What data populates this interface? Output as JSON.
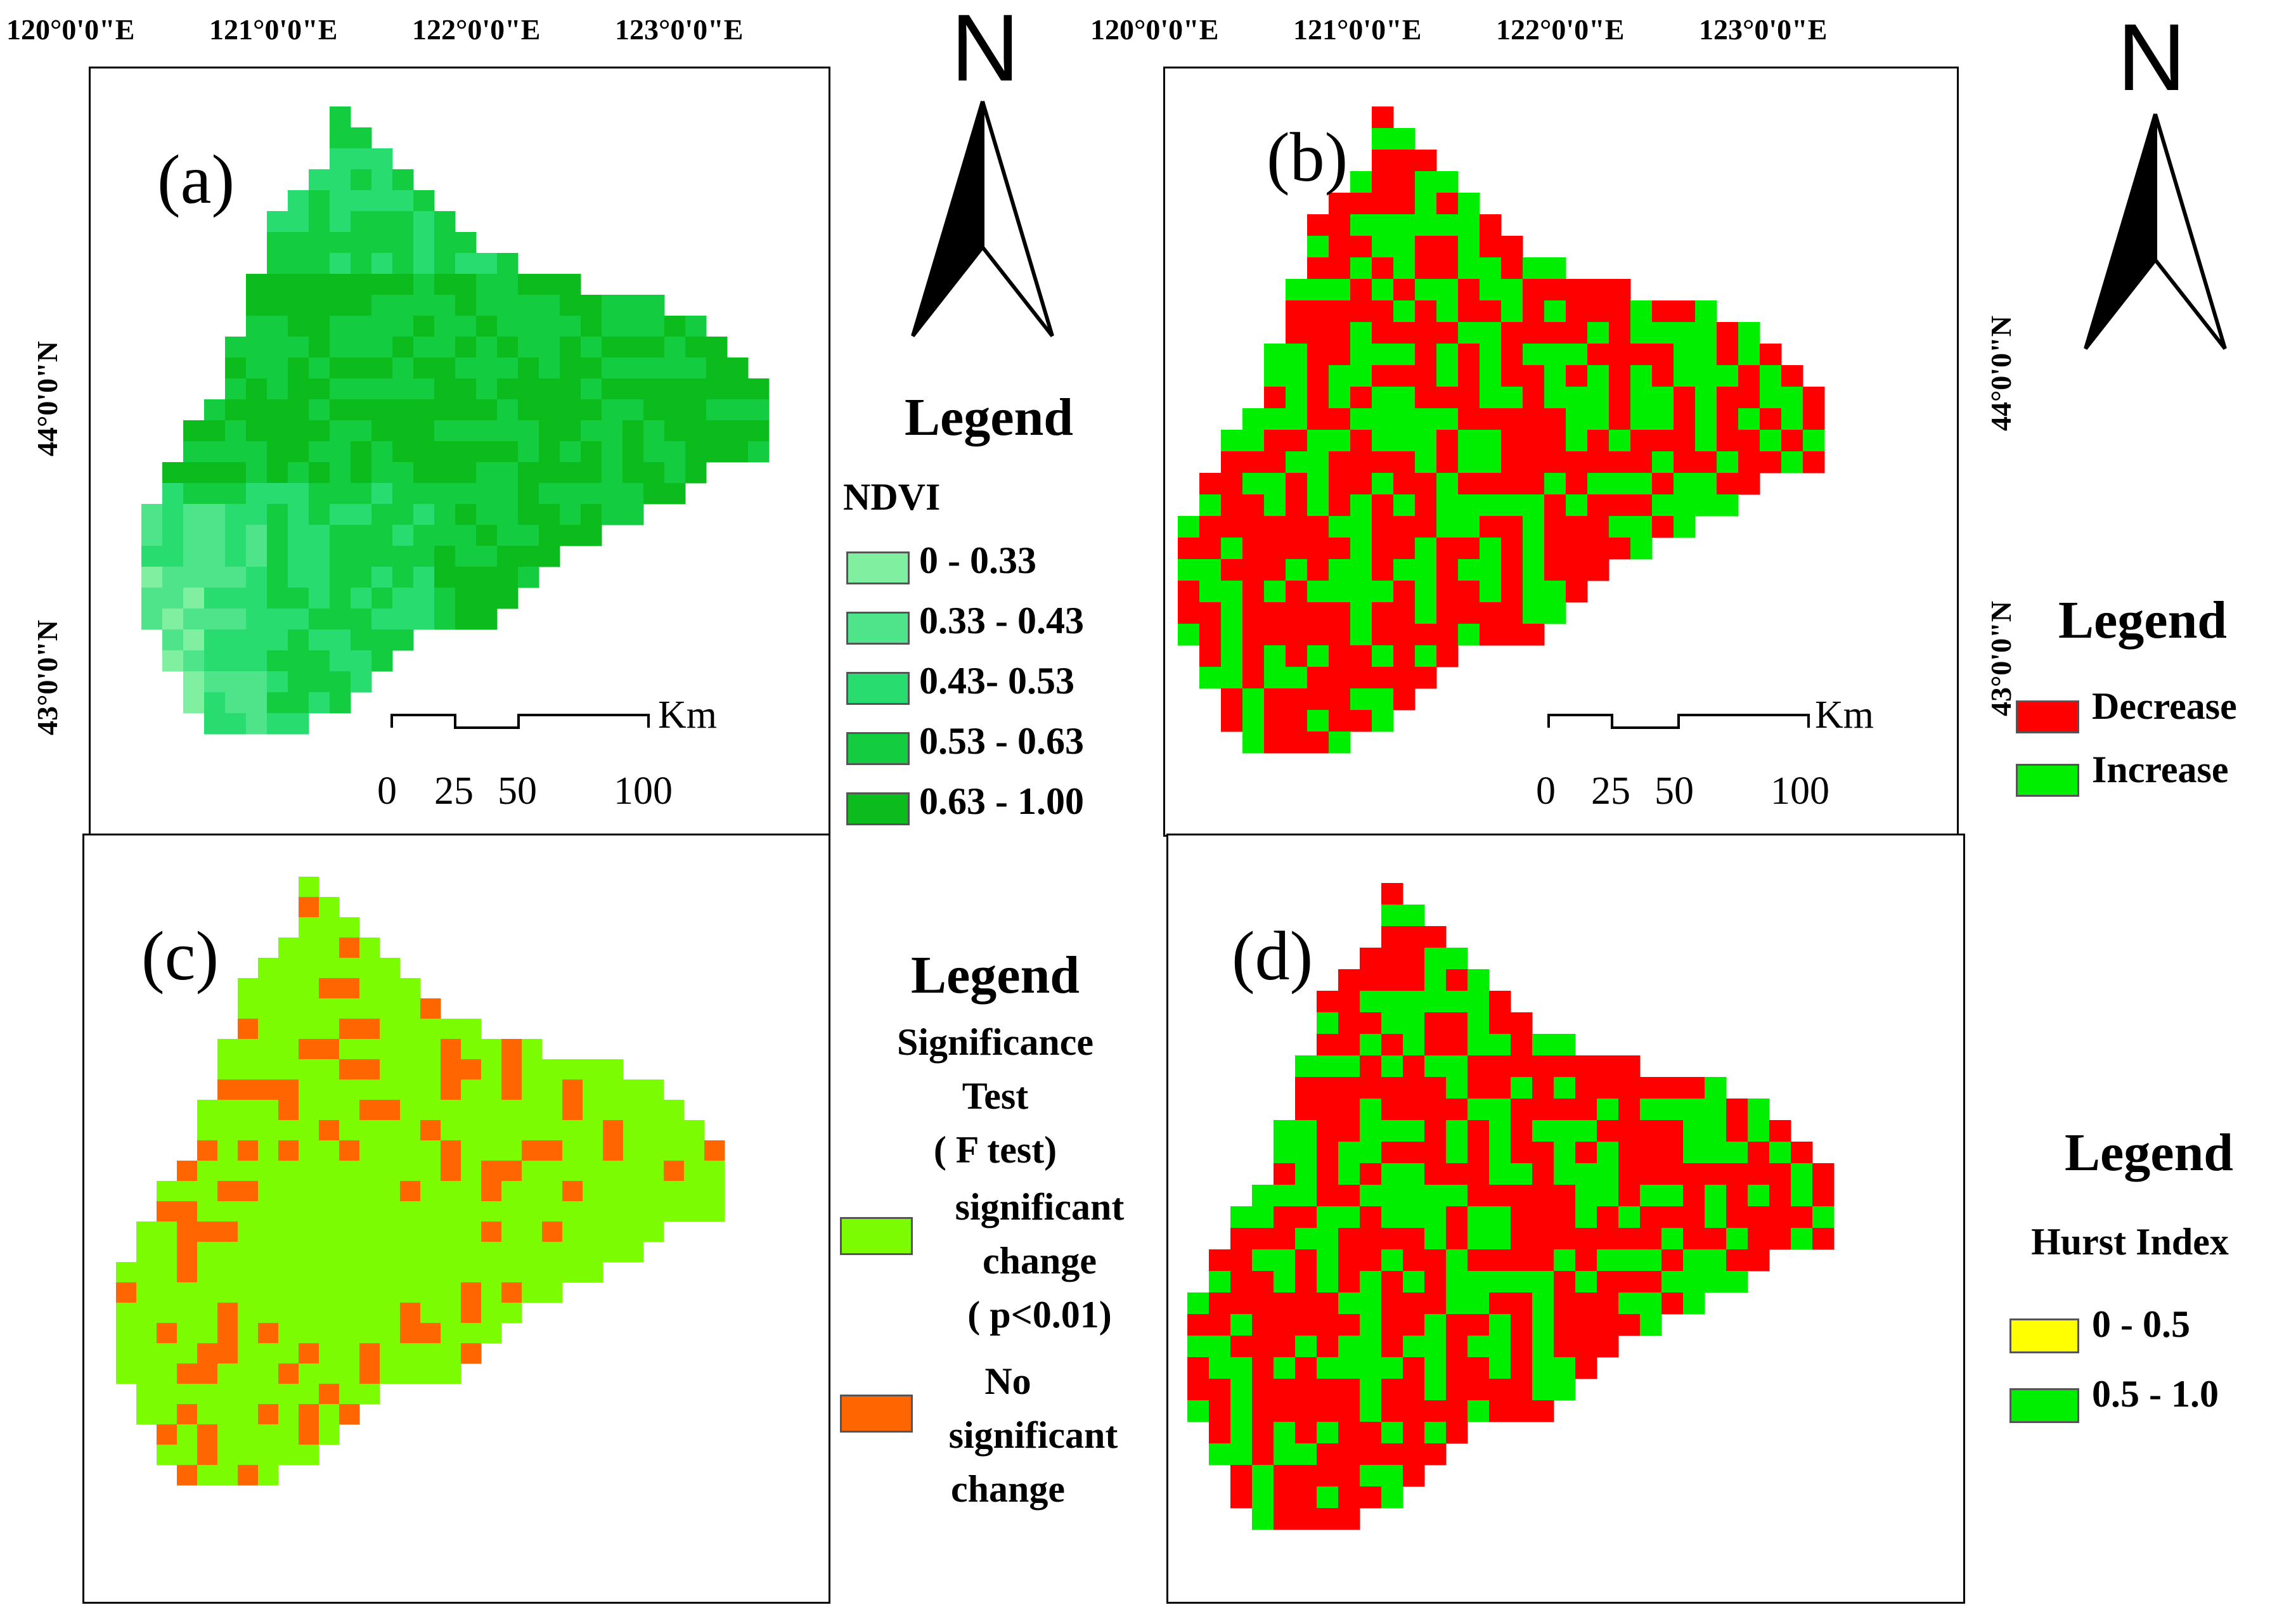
{
  "panels": {
    "a": {
      "label": "(a)"
    },
    "b": {
      "label": "(b)"
    },
    "c": {
      "label": "(c)"
    },
    "d": {
      "label": "(d)"
    }
  },
  "coordinates": {
    "longitude_ticks": [
      "120°0'0\"E",
      "121°0'0\"E",
      "122°0'0\"E",
      "123°0'0\"E"
    ],
    "latitude_ticks": [
      "44°0'0\"N",
      "43°0'0\"N"
    ]
  },
  "north_arrow": {
    "letter": "N"
  },
  "scale_bar": {
    "unit": "Km",
    "ticks": [
      "0",
      "25",
      "50",
      "100"
    ]
  },
  "legend_a": {
    "title": "Legend",
    "subtitle": "NDVI",
    "items": [
      {
        "label": "0 - 0.33",
        "color": "#80f0a0"
      },
      {
        "label": "0.33 - 0.43",
        "color": "#4ee58a"
      },
      {
        "label": "0.43- 0.53",
        "color": "#28dc70"
      },
      {
        "label": "0.53 - 0.63",
        "color": "#14cc40"
      },
      {
        "label": "0.63 - 1.00",
        "color": "#0cbc1c"
      }
    ]
  },
  "legend_b": {
    "title": "Legend",
    "items": [
      {
        "label": "Decrease",
        "color": "#ff0000"
      },
      {
        "label": "Increase",
        "color": "#00ee00"
      }
    ]
  },
  "legend_c": {
    "title": "Legend",
    "subtitle_lines": [
      "Significance",
      "Test",
      "( F test)"
    ],
    "items": [
      {
        "lines": [
          "significant",
          "change",
          "( p<0.01)"
        ],
        "color": "#7cfc00"
      },
      {
        "lines": [
          "No",
          "significant",
          "change"
        ],
        "color": "#ff6600"
      }
    ]
  },
  "legend_d": {
    "title": "Legend",
    "subtitle": "Hurst Index",
    "items": [
      {
        "label": "0 - 0.5",
        "color": "#ffff00"
      },
      {
        "label": "0.5 - 1.0",
        "color": "#00ee00"
      }
    ]
  },
  "map_colors": {
    "ndvi_classes": [
      "#80f0a0",
      "#4ee58a",
      "#28dc70",
      "#14cc40",
      "#0cbc1c"
    ],
    "decrease": "#ff0000",
    "increase": "#00ee00",
    "significant": "#7cfc00",
    "not_significant": "#ff6600"
  }
}
